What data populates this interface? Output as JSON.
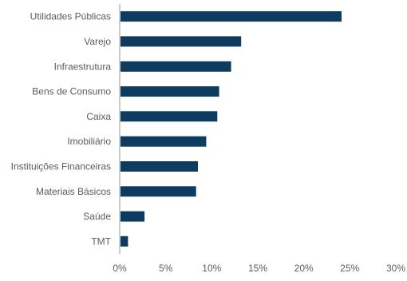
{
  "chart_data": {
    "type": "bar",
    "orientation": "horizontal",
    "categories": [
      "Utilidades Públicas",
      "Varejo",
      "Infraestrutura",
      "Bens de Consumo",
      "Caixa",
      "Imobiliário",
      "Instituições Financeiras",
      "Materiais Básicos",
      "Saúde",
      "TMT"
    ],
    "values": [
      24.1,
      13.2,
      12.1,
      10.8,
      10.6,
      9.4,
      8.5,
      8.3,
      2.7,
      0.9
    ],
    "xlim": [
      0,
      30
    ],
    "x_ticks": [
      0,
      5,
      10,
      15,
      20,
      25,
      30
    ],
    "x_tick_labels": [
      "0%",
      "5%",
      "10%",
      "15%",
      "20%",
      "25%",
      "30%"
    ],
    "grid": false,
    "legend": "none",
    "colors": {
      "bar": "#0e3c61",
      "axis": "#9a9a9a",
      "text": "#5b5b5b"
    }
  }
}
